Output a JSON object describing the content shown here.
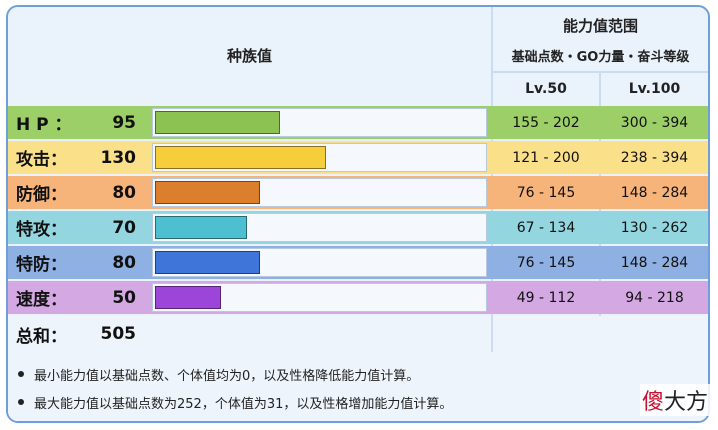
{
  "header": {
    "species": "种族值",
    "range_title": "能力值范围",
    "range_sub": "基础点数・GO力量・奋斗等级",
    "lv50": "Lv.50",
    "lv100": "Lv.100"
  },
  "stats": [
    {
      "name": "H P ：",
      "value": "95",
      "lv50": "155 - 202",
      "lv100": "300 - 394",
      "bar_color": "#8cc251",
      "row_color": "#9ccf68"
    },
    {
      "name": "攻击：",
      "value": "130",
      "lv50": "121 - 200",
      "lv100": "238 - 394",
      "bar_color": "#f6cd3b",
      "row_color": "#fbe08a"
    },
    {
      "name": "防御：",
      "value": "80",
      "lv50": "76 - 145",
      "lv100": "148 - 284",
      "bar_color": "#db7f2c",
      "row_color": "#f7b47a"
    },
    {
      "name": "特攻：",
      "value": "70",
      "lv50": "67 - 134",
      "lv100": "130 - 262",
      "bar_color": "#4cc0d1",
      "row_color": "#93d6e0"
    },
    {
      "name": "特防：",
      "value": "80",
      "lv50": "76 - 145",
      "lv100": "148 - 284",
      "bar_color": "#3f74d8",
      "row_color": "#8fb0e2"
    },
    {
      "name": "速度：",
      "value": "50",
      "lv50": "49 - 112",
      "lv100": "94 - 218",
      "bar_color": "#9b46d8",
      "row_color": "#d3a8e3"
    }
  ],
  "bar_max": 255,
  "total": {
    "name": "总和：",
    "value": "505"
  },
  "notes": [
    "最小能力值以基础点数、个体值均为0，以及性格降低能力值计算。",
    "最大能力值以基础点数为252，个体值为31，以及性格增加能力值计算。"
  ],
  "watermark": {
    "red": "傻",
    "rest": "大方"
  }
}
